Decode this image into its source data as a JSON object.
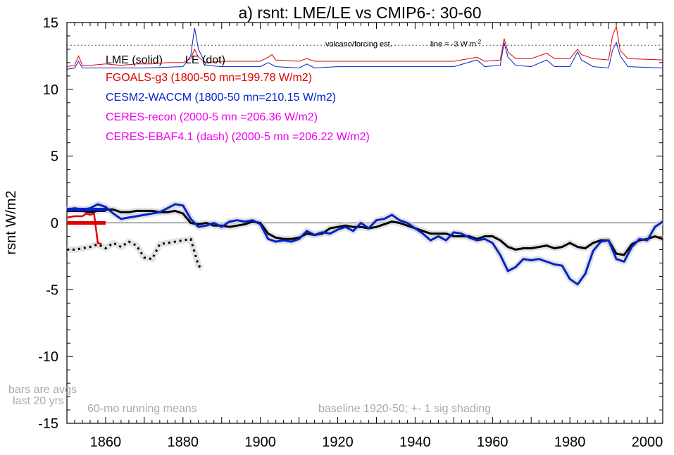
{
  "chart_data": {
    "type": "line",
    "title": "a) rsnt: LME/LE vs CMIP6-: 30-60",
    "ylabel": "rsnt W/m2",
    "xlabel": "",
    "xlim": [
      1850,
      2004
    ],
    "ylim": [
      -15,
      15
    ],
    "x_ticks": [
      1860,
      1880,
      1900,
      1920,
      1940,
      1960,
      1980,
      2000
    ],
    "y_ticks": [
      -15,
      -10,
      -5,
      0,
      5,
      10,
      15
    ],
    "legend": {
      "header_solid": "LME (solid)",
      "header_dot": "LE (dot)",
      "entries": [
        {
          "text": "FGOALS-g3 (1800-50 mn=199.78 W/m2)",
          "color": "#e00000"
        },
        {
          "text": "CESM2-WACCM (1800-50 mn=210.15 W/m2)",
          "color": "#0022cc"
        },
        {
          "text": "CERES-recon (2000-5 mn =206.36 W/m2)",
          "color": "#ee00ee"
        },
        {
          "text": "CERES-EBAF4.1 (dash) (2000-5 mn =206.22 W/m2)",
          "color": "#ee00ee"
        }
      ]
    },
    "annotations": {
      "volcano": "volcano/forcing est.",
      "line_note": "line = -3 W m",
      "line_note_sup": "-2",
      "bars_note_1": "bars are avgs",
      "bars_note_2": "last 20 yrs",
      "running_means": "60-mo running means",
      "baseline": "baseline 1920-50; +- 1 sig shading"
    },
    "volcano_dotted_level": 13.3,
    "series": [
      {
        "name": "LME (solid)",
        "color": "#000000",
        "points": [
          [
            1850,
            0.9
          ],
          [
            1852,
            1.0
          ],
          [
            1854,
            0.9
          ],
          [
            1856,
            0.8
          ],
          [
            1858,
            0.9
          ],
          [
            1860,
            1.0
          ],
          [
            1862,
            1.0
          ],
          [
            1864,
            0.8
          ],
          [
            1866,
            0.8
          ],
          [
            1868,
            0.9
          ],
          [
            1870,
            0.9
          ],
          [
            1872,
            0.9
          ],
          [
            1874,
            0.8
          ],
          [
            1876,
            0.8
          ],
          [
            1878,
            0.9
          ],
          [
            1880,
            0.7
          ],
          [
            1882,
            0.0
          ],
          [
            1884,
            -0.1
          ],
          [
            1886,
            0.0
          ],
          [
            1888,
            -0.2
          ],
          [
            1890,
            -0.2
          ],
          [
            1892,
            -0.3
          ],
          [
            1894,
            -0.2
          ],
          [
            1896,
            -0.1
          ],
          [
            1898,
            0.1
          ],
          [
            1900,
            0.0
          ],
          [
            1902,
            -0.8
          ],
          [
            1904,
            -1.1
          ],
          [
            1906,
            -1.2
          ],
          [
            1908,
            -1.2
          ],
          [
            1910,
            -1.1
          ],
          [
            1912,
            -0.8
          ],
          [
            1914,
            -0.9
          ],
          [
            1916,
            -0.8
          ],
          [
            1918,
            -0.4
          ],
          [
            1920,
            -0.3
          ],
          [
            1922,
            -0.2
          ],
          [
            1924,
            -0.3
          ],
          [
            1926,
            -0.3
          ],
          [
            1928,
            -0.4
          ],
          [
            1930,
            -0.3
          ],
          [
            1932,
            -0.1
          ],
          [
            1934,
            0.1
          ],
          [
            1936,
            0.0
          ],
          [
            1938,
            -0.2
          ],
          [
            1940,
            -0.4
          ],
          [
            1942,
            -0.6
          ],
          [
            1944,
            -0.8
          ],
          [
            1946,
            -0.8
          ],
          [
            1948,
            -0.8
          ],
          [
            1950,
            -1.0
          ],
          [
            1952,
            -1.0
          ],
          [
            1954,
            -1.0
          ],
          [
            1956,
            -1.2
          ],
          [
            1958,
            -1.0
          ],
          [
            1960,
            -1.0
          ],
          [
            1962,
            -1.3
          ],
          [
            1964,
            -1.8
          ],
          [
            1966,
            -2.0
          ],
          [
            1968,
            -1.9
          ],
          [
            1970,
            -1.9
          ],
          [
            1972,
            -1.8
          ],
          [
            1974,
            -1.7
          ],
          [
            1976,
            -1.9
          ],
          [
            1978,
            -1.8
          ],
          [
            1980,
            -1.5
          ],
          [
            1982,
            -1.8
          ],
          [
            1984,
            -1.9
          ],
          [
            1986,
            -1.5
          ],
          [
            1988,
            -1.3
          ],
          [
            1990,
            -1.3
          ],
          [
            1992,
            -2.3
          ],
          [
            1994,
            -2.4
          ],
          [
            1996,
            -1.6
          ],
          [
            1998,
            -1.3
          ],
          [
            2000,
            -1.2
          ],
          [
            2002,
            -1.0
          ],
          [
            2004,
            -1.2
          ]
        ]
      },
      {
        "name": "CESM2-WACCM",
        "color": "#0022cc",
        "points": [
          [
            1850,
            1.0
          ],
          [
            1852,
            1.1
          ],
          [
            1854,
            1.0
          ],
          [
            1856,
            1.1
          ],
          [
            1858,
            1.4
          ],
          [
            1860,
            1.2
          ],
          [
            1862,
            0.7
          ],
          [
            1864,
            0.3
          ],
          [
            1866,
            0.4
          ],
          [
            1868,
            0.5
          ],
          [
            1870,
            0.6
          ],
          [
            1872,
            0.7
          ],
          [
            1874,
            0.8
          ],
          [
            1876,
            1.1
          ],
          [
            1878,
            1.4
          ],
          [
            1880,
            1.3
          ],
          [
            1882,
            0.3
          ],
          [
            1884,
            -0.3
          ],
          [
            1886,
            -0.2
          ],
          [
            1888,
            0.0
          ],
          [
            1890,
            -0.3
          ],
          [
            1892,
            0.1
          ],
          [
            1894,
            0.2
          ],
          [
            1896,
            0.1
          ],
          [
            1898,
            0.2
          ],
          [
            1900,
            -0.1
          ],
          [
            1902,
            -1.2
          ],
          [
            1904,
            -1.4
          ],
          [
            1906,
            -1.3
          ],
          [
            1908,
            -1.4
          ],
          [
            1910,
            -1.2
          ],
          [
            1912,
            -0.6
          ],
          [
            1914,
            -0.9
          ],
          [
            1916,
            -0.7
          ],
          [
            1918,
            -0.8
          ],
          [
            1920,
            -0.5
          ],
          [
            1922,
            -0.3
          ],
          [
            1924,
            -0.6
          ],
          [
            1926,
            0.0
          ],
          [
            1928,
            -0.4
          ],
          [
            1930,
            0.2
          ],
          [
            1932,
            0.3
          ],
          [
            1934,
            0.6
          ],
          [
            1936,
            0.2
          ],
          [
            1938,
            0.0
          ],
          [
            1940,
            -0.4
          ],
          [
            1942,
            -0.8
          ],
          [
            1944,
            -1.3
          ],
          [
            1946,
            -1.0
          ],
          [
            1948,
            -1.3
          ],
          [
            1950,
            -0.7
          ],
          [
            1952,
            -0.8
          ],
          [
            1954,
            -1.1
          ],
          [
            1956,
            -1.3
          ],
          [
            1958,
            -1.2
          ],
          [
            1960,
            -1.5
          ],
          [
            1962,
            -2.4
          ],
          [
            1964,
            -3.6
          ],
          [
            1966,
            -3.3
          ],
          [
            1968,
            -2.7
          ],
          [
            1970,
            -2.8
          ],
          [
            1972,
            -2.7
          ],
          [
            1974,
            -2.9
          ],
          [
            1976,
            -3.1
          ],
          [
            1978,
            -3.2
          ],
          [
            1980,
            -4.2
          ],
          [
            1982,
            -4.6
          ],
          [
            1984,
            -3.8
          ],
          [
            1986,
            -2.1
          ],
          [
            1988,
            -1.4
          ],
          [
            1990,
            -1.3
          ],
          [
            1992,
            -2.7
          ],
          [
            1994,
            -2.9
          ],
          [
            1996,
            -1.8
          ],
          [
            1998,
            -1.2
          ],
          [
            2000,
            -1.3
          ],
          [
            2002,
            -0.3
          ],
          [
            2004,
            0.1
          ]
        ]
      },
      {
        "name": "LE (dot)",
        "color": "#000000",
        "points": [
          [
            1850,
            -2.0
          ],
          [
            1852,
            -2.0
          ],
          [
            1854,
            -1.9
          ],
          [
            1856,
            -1.8
          ],
          [
            1858,
            -1.6
          ],
          [
            1860,
            -1.9
          ],
          [
            1862,
            -1.5
          ],
          [
            1864,
            -1.8
          ],
          [
            1866,
            -1.4
          ],
          [
            1868,
            -1.7
          ],
          [
            1870,
            -2.6
          ],
          [
            1872,
            -2.7
          ],
          [
            1874,
            -1.6
          ],
          [
            1876,
            -1.5
          ],
          [
            1878,
            -1.4
          ],
          [
            1880,
            -1.3
          ],
          [
            1882,
            -1.2
          ],
          [
            1884,
            -3.2
          ],
          [
            1885,
            -3.4
          ]
        ]
      }
    ],
    "volcano_series": [
      {
        "name": "FGOALS-g3 forcing",
        "color": "#e00000",
        "points": [
          [
            1850,
            11.7
          ],
          [
            1852,
            11.8
          ],
          [
            1853,
            12.5
          ],
          [
            1854,
            11.8
          ],
          [
            1856,
            11.8
          ],
          [
            1860,
            11.9
          ],
          [
            1864,
            11.8
          ],
          [
            1868,
            11.9
          ],
          [
            1872,
            11.9
          ],
          [
            1876,
            12.0
          ],
          [
            1880,
            12.0
          ],
          [
            1882,
            12.3
          ],
          [
            1883,
            13.0
          ],
          [
            1884,
            12.4
          ],
          [
            1886,
            12.0
          ],
          [
            1890,
            12.1
          ],
          [
            1900,
            12.1
          ],
          [
            1902,
            12.4
          ],
          [
            1903,
            12.6
          ],
          [
            1904,
            12.2
          ],
          [
            1910,
            12.1
          ],
          [
            1912,
            12.3
          ],
          [
            1914,
            12.1
          ],
          [
            1920,
            12.1
          ],
          [
            1930,
            12.1
          ],
          [
            1940,
            12.1
          ],
          [
            1950,
            12.1
          ],
          [
            1956,
            12.4
          ],
          [
            1958,
            12.1
          ],
          [
            1962,
            12.2
          ],
          [
            1963,
            13.8
          ],
          [
            1964,
            12.8
          ],
          [
            1966,
            12.3
          ],
          [
            1970,
            12.3
          ],
          [
            1974,
            12.7
          ],
          [
            1976,
            12.3
          ],
          [
            1980,
            12.3
          ],
          [
            1982,
            13.0
          ],
          [
            1983,
            12.6
          ],
          [
            1986,
            12.3
          ],
          [
            1990,
            12.2
          ],
          [
            1991,
            14.0
          ],
          [
            1992,
            14.7
          ],
          [
            1993,
            12.9
          ],
          [
            1995,
            12.3
          ],
          [
            2004,
            12.2
          ]
        ]
      },
      {
        "name": "CESM2-WACCM forcing",
        "color": "#0022cc",
        "points": [
          [
            1850,
            11.5
          ],
          [
            1852,
            11.6
          ],
          [
            1853,
            12.1
          ],
          [
            1854,
            11.6
          ],
          [
            1860,
            11.6
          ],
          [
            1870,
            11.6
          ],
          [
            1880,
            11.7
          ],
          [
            1882,
            12.5
          ],
          [
            1883,
            14.6
          ],
          [
            1884,
            13.0
          ],
          [
            1886,
            11.8
          ],
          [
            1890,
            11.7
          ],
          [
            1900,
            11.7
          ],
          [
            1902,
            12.0
          ],
          [
            1904,
            11.7
          ],
          [
            1910,
            11.6
          ],
          [
            1912,
            11.9
          ],
          [
            1914,
            11.6
          ],
          [
            1920,
            11.7
          ],
          [
            1930,
            11.7
          ],
          [
            1940,
            11.7
          ],
          [
            1950,
            11.7
          ],
          [
            1956,
            12.2
          ],
          [
            1958,
            11.7
          ],
          [
            1962,
            11.8
          ],
          [
            1963,
            13.5
          ],
          [
            1964,
            12.4
          ],
          [
            1966,
            11.8
          ],
          [
            1970,
            11.7
          ],
          [
            1974,
            12.2
          ],
          [
            1976,
            11.7
          ],
          [
            1980,
            11.7
          ],
          [
            1982,
            12.8
          ],
          [
            1983,
            12.2
          ],
          [
            1986,
            11.7
          ],
          [
            1990,
            11.6
          ],
          [
            1991,
            12.9
          ],
          [
            1992,
            13.5
          ],
          [
            1993,
            12.5
          ],
          [
            1995,
            11.7
          ],
          [
            2004,
            11.6
          ]
        ]
      }
    ],
    "bars": [
      {
        "name": "LME bar",
        "color": "#000000",
        "x0": 1850,
        "x1": 1860,
        "y": 0.95
      },
      {
        "name": "CESM2-WACCM bar",
        "color": "#0022cc",
        "x0": 1850,
        "x1": 1860,
        "y": 1.0
      },
      {
        "name": "FGOALS-g3 bar",
        "color": "#e00000",
        "x0": 1850,
        "x1": 1860,
        "y": 0.0
      }
    ],
    "fgoals_segment": {
      "color": "#e00000",
      "points": [
        [
          1850,
          0.4
        ],
        [
          1852,
          0.5
        ],
        [
          1854,
          0.5
        ],
        [
          1855,
          0.7
        ],
        [
          1856,
          0.6
        ],
        [
          1857,
          0.7
        ],
        [
          1858,
          -1.5
        ],
        [
          1859,
          -1.6
        ]
      ]
    }
  }
}
